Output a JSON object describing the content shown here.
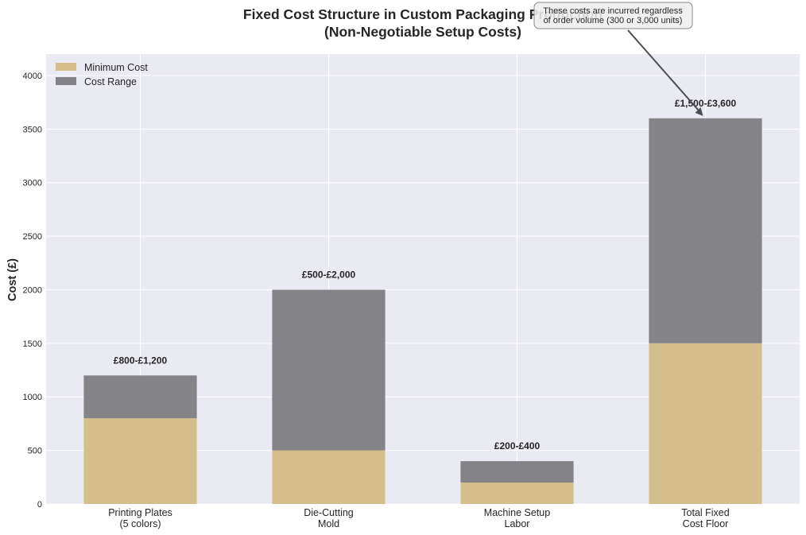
{
  "chart_data": {
    "type": "bar",
    "stacked": true,
    "title": "Fixed Cost Structure in Custom Packaging Production",
    "subtitle": "(Non-Negotiable Setup Costs)",
    "xlabel": "",
    "ylabel": "Cost (£)",
    "ylim": [
      0,
      4200
    ],
    "yticks": [
      0,
      500,
      1000,
      1500,
      2000,
      2500,
      3000,
      3500,
      4000
    ],
    "grid": true,
    "categories": [
      [
        "Printing Plates",
        "(5 colors)"
      ],
      [
        "Die-Cutting",
        "Mold"
      ],
      [
        "Machine Setup",
        "Labor"
      ],
      [
        "Total Fixed",
        "Cost Floor"
      ]
    ],
    "series": [
      {
        "name": "Minimum Cost",
        "color": "#d4bf8c",
        "values": [
          800,
          500,
          200,
          1500
        ]
      },
      {
        "name": "Cost Range",
        "color": "#848388",
        "values": [
          400,
          1500,
          200,
          2100
        ]
      }
    ],
    "data_labels": [
      "£800-£1,200",
      "£500-£2,000",
      "£200-£400",
      "£1,500-£3,600"
    ],
    "legend": {
      "location": "top-left"
    },
    "annotation": {
      "lines": [
        "These costs are incurred regardless",
        "of order volume (300 or 3,000 units)"
      ],
      "target_category_index": 3,
      "target_value": 3600
    }
  },
  "colors": {
    "plot_background": "#eaeaf2",
    "grid": "#ffffff",
    "text": "#262626",
    "arrow": "#4d4d55"
  }
}
